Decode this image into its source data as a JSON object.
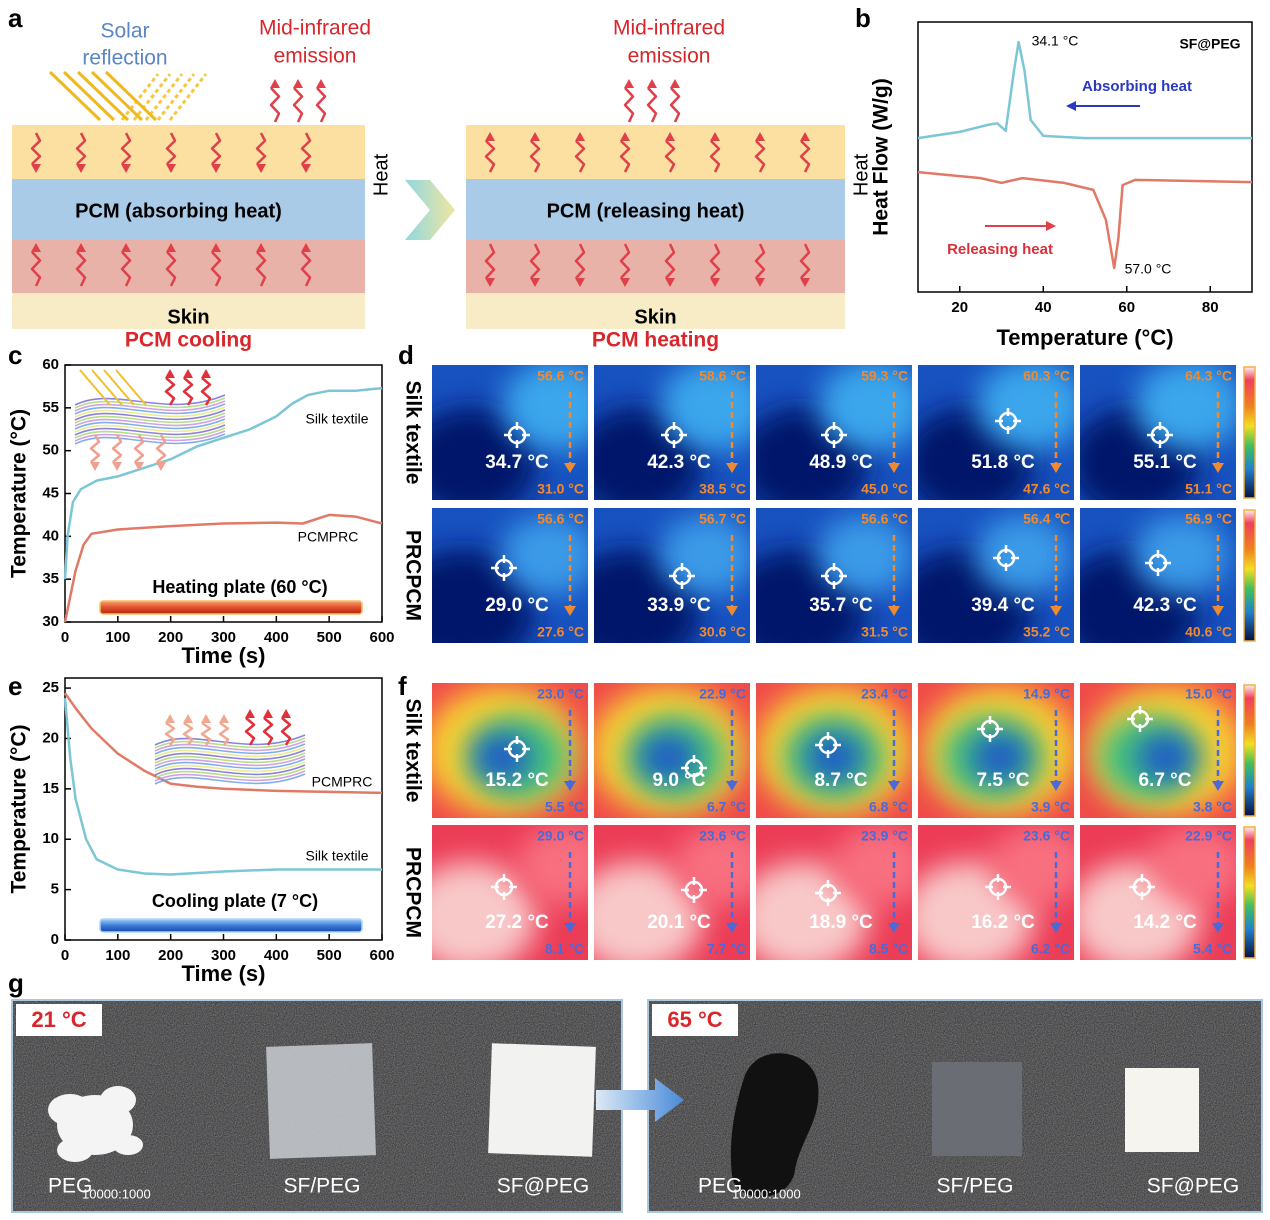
{
  "panel_labels": [
    "a",
    "b",
    "c",
    "d",
    "e",
    "f",
    "g"
  ],
  "schematic": {
    "solar_reflection": [
      "Solar",
      "reflection"
    ],
    "states": [
      {
        "emission": [
          "Mid-infrared",
          "emission"
        ],
        "heat": "Heat",
        "pcm": "PCM (absorbing heat)",
        "skin": "Skin",
        "caption": "PCM cooling"
      },
      {
        "emission": [
          "Mid-infrared",
          "emission"
        ],
        "heat": "Heat",
        "pcm": "PCM (releasing heat)",
        "skin": "Skin",
        "caption": "PCM heating"
      }
    ]
  },
  "chart_data": [
    {
      "type": "line",
      "xlabel": "Temperature (°C)",
      "ylabel": "Heat Flow (W/g)",
      "xlim": [
        10,
        90
      ],
      "xticks": [
        20,
        40,
        60,
        80
      ],
      "ylim": [
        0,
        10
      ],
      "annotations": [
        "34.1 °C",
        "57.0 °C",
        "SF@PEG",
        "Absorbing heat",
        "Releasing heat"
      ],
      "series": [
        {
          "color": "#7cc6d6",
          "x": [
            10,
            20,
            27,
            29,
            31,
            33,
            34.1,
            35.5,
            37,
            40,
            50,
            90
          ],
          "values": [
            5.7,
            5.93,
            6.2,
            6.25,
            5.97,
            8.2,
            9.26,
            8.2,
            6.37,
            5.78,
            5.7,
            5.7
          ]
        },
        {
          "color": "#e07a67",
          "x": [
            10,
            25,
            30,
            35,
            45,
            52,
            55,
            57,
            58,
            59,
            62,
            90
          ],
          "values": [
            4.44,
            4.22,
            4.04,
            4.22,
            4.04,
            3.78,
            2.67,
            0.89,
            2.0,
            3.96,
            4.15,
            4.07
          ]
        }
      ]
    },
    {
      "type": "line",
      "xlabel": "Time (s)",
      "ylabel": "Temperature (°C)",
      "xlim": [
        0,
        600
      ],
      "xticks": [
        0,
        100,
        200,
        300,
        400,
        500,
        600
      ],
      "ylim": [
        30,
        60
      ],
      "yticks": [
        30,
        35,
        40,
        45,
        50,
        55,
        60
      ],
      "annotations": [
        "Heating plate (60 °C)"
      ],
      "series": [
        {
          "name": "Silk textile",
          "color": "#7cc6d6",
          "x": [
            0,
            5,
            15,
            30,
            60,
            100,
            150,
            200,
            250,
            300,
            350,
            400,
            430,
            460,
            500,
            550,
            600
          ],
          "values": [
            35,
            40,
            44,
            45.5,
            46.5,
            47,
            48,
            49,
            50.5,
            51.5,
            52.5,
            54,
            55.5,
            56.5,
            57,
            57,
            57.3
          ]
        },
        {
          "name": "PCMPRC",
          "color": "#e07a67",
          "x": [
            0,
            10,
            20,
            35,
            50,
            100,
            200,
            300,
            400,
            450,
            500,
            550,
            600
          ],
          "values": [
            30,
            33,
            36,
            39,
            40.3,
            40.8,
            41.2,
            41.5,
            41.6,
            41.5,
            42.5,
            42.3,
            41.5
          ]
        }
      ]
    },
    {
      "type": "line",
      "xlabel": "Time (s)",
      "ylabel": "Temperature (°C)",
      "xlim": [
        0,
        600
      ],
      "xticks": [
        0,
        100,
        200,
        300,
        400,
        500,
        600
      ],
      "ylim": [
        0,
        26
      ],
      "yticks": [
        0,
        5,
        10,
        15,
        20,
        25
      ],
      "annotations": [
        "Cooling plate (7 °C)"
      ],
      "series": [
        {
          "name": "PCMPRC",
          "color": "#e07a67",
          "x": [
            0,
            20,
            50,
            100,
            150,
            200,
            250,
            300,
            400,
            500,
            600
          ],
          "values": [
            24.5,
            23,
            21,
            18.5,
            16.8,
            15.5,
            15.2,
            15,
            14.8,
            14.7,
            14.6
          ]
        },
        {
          "name": "Silk textile",
          "color": "#7cc6d6",
          "x": [
            0,
            10,
            20,
            40,
            60,
            100,
            150,
            200,
            300,
            400,
            500,
            600
          ],
          "values": [
            24,
            18,
            14,
            10,
            8,
            7,
            6.6,
            6.5,
            6.8,
            7,
            7,
            7
          ]
        }
      ]
    }
  ],
  "thermal": [
    {
      "rows": [
        {
          "label": "Silk textile",
          "cells": [
            {
              "top": "56.6 °C",
              "center": "34.7 °C",
              "bottom": "31.0 °C"
            },
            {
              "top": "58.6 °C",
              "center": "42.3 °C",
              "bottom": "38.5 °C"
            },
            {
              "top": "59.3 °C",
              "center": "48.9 °C",
              "bottom": "45.0 °C"
            },
            {
              "top": "60.3 °C",
              "center": "51.8 °C",
              "bottom": "47.6 °C"
            },
            {
              "top": "64.3 °C",
              "center": "55.1 °C",
              "bottom": "51.1 °C"
            }
          ]
        },
        {
          "label": "PRCPCM",
          "cells": [
            {
              "top": "56.6 °C",
              "center": "29.0 °C",
              "bottom": "27.6 °C"
            },
            {
              "top": "56.7 °C",
              "center": "33.9 °C",
              "bottom": "30.6 °C"
            },
            {
              "top": "56.6 °C",
              "center": "35.7 °C",
              "bottom": "31.5 °C"
            },
            {
              "top": "56.4 ℃",
              "center": "39.4 °C",
              "bottom": "35.2 °C"
            },
            {
              "top": "56.9 °C",
              "center": "42.3 °C",
              "bottom": "40.6 °C"
            }
          ]
        }
      ]
    },
    {
      "rows": [
        {
          "label": "Silk textile",
          "cells": [
            {
              "top": "23.0 °C",
              "center": "15.2 °C",
              "bottom": "5.5 °C"
            },
            {
              "top": "22.9 °C",
              "center": "9.0 °C",
              "bottom": "6.7 °C"
            },
            {
              "top": "23.4 °C",
              "center": "8.7 °C",
              "bottom": "6.8 °C"
            },
            {
              "top": "14.9 °C",
              "center": "7.5 °C",
              "bottom": "3.9 °C"
            },
            {
              "top": "15.0 °C",
              "center": "6.7 °C",
              "bottom": "3.8 °C"
            }
          ]
        },
        {
          "label": "PRCPCM",
          "cells": [
            {
              "top": "29.0 °C",
              "center": "27.2 °C",
              "bottom": "8.1 °C"
            },
            {
              "top": "23.6 °C",
              "center": "20.1 °C",
              "bottom": "7.7 °C"
            },
            {
              "top": "23.9 °C",
              "center": "18.9 °C",
              "bottom": "8.5 °C"
            },
            {
              "top": "23.6 °C",
              "center": "16.2 °C",
              "bottom": "6.2 °C"
            },
            {
              "top": "22.9 °C",
              "center": "14.2 °C",
              "bottom": "5.4 °C"
            }
          ]
        }
      ]
    }
  ],
  "photos": [
    {
      "temperature": "21 °C",
      "samples": [
        {
          "name": "PEG",
          "subscript": "10000:1000"
        },
        {
          "name": "SF/PEG"
        },
        {
          "name": "SF@PEG"
        }
      ]
    },
    {
      "temperature": "65 °C",
      "samples": [
        {
          "name": "PEG",
          "subscript": "10000:1000"
        },
        {
          "name": "SF/PEG"
        },
        {
          "name": "SF@PEG"
        }
      ]
    }
  ]
}
